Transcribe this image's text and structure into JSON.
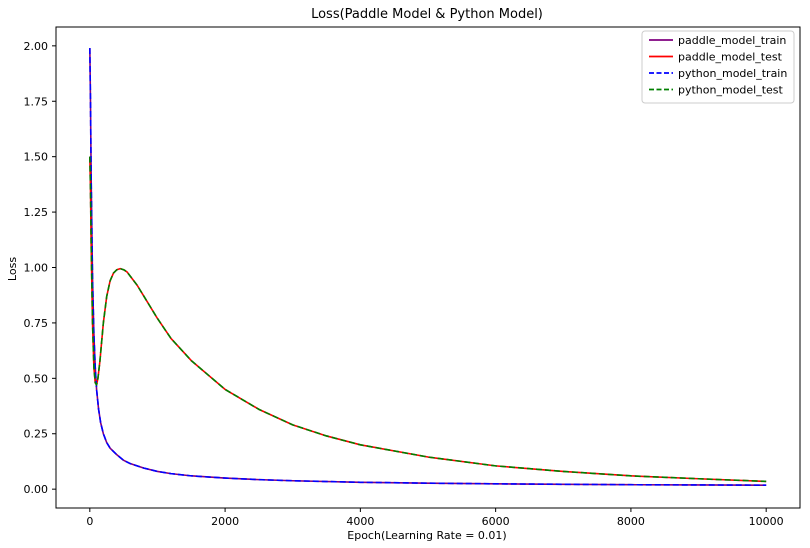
{
  "chart_data": {
    "type": "line",
    "title": "Loss(Paddle Model & Python Model)",
    "xlabel": "Epoch(Learning Rate = 0.01)",
    "ylabel": "Loss",
    "xlim": [
      -500,
      10500
    ],
    "ylim": [
      -0.085,
      2.085
    ],
    "xticks": [
      0,
      2000,
      4000,
      6000,
      8000,
      10000
    ],
    "xtick_labels": [
      "0",
      "2000",
      "4000",
      "6000",
      "8000",
      "10000"
    ],
    "yticks": [
      0.0,
      0.25,
      0.5,
      0.75,
      1.0,
      1.25,
      1.5,
      1.75,
      2.0
    ],
    "ytick_labels": [
      "0.00",
      "0.25",
      "0.50",
      "0.75",
      "1.00",
      "1.25",
      "1.50",
      "1.75",
      "2.00"
    ],
    "grid": false,
    "legend_position": "top-right",
    "series": [
      {
        "name": "paddle_model_train",
        "color": "#800080",
        "style": "solid",
        "x": [
          0,
          10,
          20,
          40,
          60,
          80,
          100,
          130,
          160,
          200,
          250,
          300,
          400,
          500,
          600,
          800,
          1000,
          1200,
          1500,
          2000,
          2500,
          3000,
          4000,
          5000,
          6000,
          7000,
          8000,
          9000,
          10000
        ],
        "y": [
          1.99,
          1.75,
          1.4,
          0.95,
          0.7,
          0.55,
          0.45,
          0.36,
          0.3,
          0.25,
          0.21,
          0.185,
          0.155,
          0.13,
          0.115,
          0.095,
          0.08,
          0.07,
          0.06,
          0.05,
          0.043,
          0.038,
          0.031,
          0.027,
          0.024,
          0.022,
          0.02,
          0.019,
          0.018
        ]
      },
      {
        "name": "paddle_model_test",
        "color": "#ff0000",
        "style": "solid",
        "x": [
          0,
          10,
          20,
          40,
          60,
          80,
          100,
          120,
          150,
          200,
          250,
          300,
          350,
          400,
          450,
          500,
          550,
          600,
          700,
          800,
          1000,
          1200,
          1500,
          2000,
          2500,
          3000,
          3500,
          4000,
          5000,
          6000,
          7000,
          8000,
          9000,
          10000
        ],
        "y": [
          1.5,
          1.35,
          1.1,
          0.75,
          0.55,
          0.48,
          0.47,
          0.5,
          0.58,
          0.75,
          0.87,
          0.94,
          0.975,
          0.99,
          0.995,
          0.99,
          0.98,
          0.96,
          0.92,
          0.87,
          0.77,
          0.68,
          0.58,
          0.45,
          0.36,
          0.29,
          0.24,
          0.2,
          0.145,
          0.105,
          0.08,
          0.06,
          0.047,
          0.035
        ]
      },
      {
        "name": "python_model_train",
        "color": "#0000ff",
        "style": "dashed",
        "x": [
          0,
          10,
          20,
          40,
          60,
          80,
          100,
          130,
          160,
          200,
          250,
          300,
          400,
          500,
          600,
          800,
          1000,
          1200,
          1500,
          2000,
          2500,
          3000,
          4000,
          5000,
          6000,
          7000,
          8000,
          9000,
          10000
        ],
        "y": [
          1.99,
          1.75,
          1.4,
          0.95,
          0.7,
          0.55,
          0.45,
          0.36,
          0.3,
          0.25,
          0.21,
          0.185,
          0.155,
          0.13,
          0.115,
          0.095,
          0.08,
          0.07,
          0.06,
          0.05,
          0.043,
          0.038,
          0.031,
          0.027,
          0.024,
          0.022,
          0.02,
          0.019,
          0.018
        ]
      },
      {
        "name": "python_model_test",
        "color": "#008000",
        "style": "dashed",
        "x": [
          0,
          10,
          20,
          40,
          60,
          80,
          100,
          120,
          150,
          200,
          250,
          300,
          350,
          400,
          450,
          500,
          550,
          600,
          700,
          800,
          1000,
          1200,
          1500,
          2000,
          2500,
          3000,
          3500,
          4000,
          5000,
          6000,
          7000,
          8000,
          9000,
          10000
        ],
        "y": [
          1.5,
          1.35,
          1.1,
          0.75,
          0.55,
          0.48,
          0.47,
          0.5,
          0.58,
          0.75,
          0.87,
          0.94,
          0.975,
          0.99,
          0.995,
          0.99,
          0.98,
          0.96,
          0.92,
          0.87,
          0.77,
          0.68,
          0.58,
          0.45,
          0.36,
          0.29,
          0.24,
          0.2,
          0.145,
          0.105,
          0.08,
          0.06,
          0.047,
          0.035
        ]
      }
    ]
  }
}
